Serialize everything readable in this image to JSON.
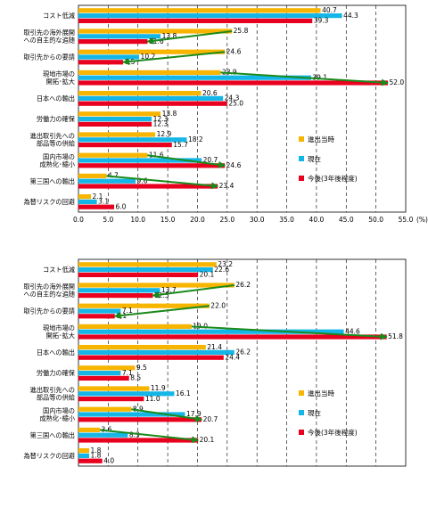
{
  "series_colors": [
    "#f7b500",
    "#14b6e8",
    "#e8001e"
  ],
  "arrow_color": "#1a8a1a",
  "chart_data": [
    {
      "type": "bar",
      "orientation": "horizontal",
      "categories": [
        "コスト低減",
        "取引先の海外展開\nへの自主的な追随",
        "取引先からの要請",
        "現地市場の\n開拓･拡大",
        "日本への輸出",
        "労働力の確保",
        "進出取引先への\n部品等の供給",
        "国内市場の\n成熟化･縮小",
        "第三国への輸出",
        "為替リスクの回避"
      ],
      "series": [
        {
          "name": "進出当時",
          "values": [
            40.7,
            25.8,
            24.6,
            23.9,
            20.6,
            13.8,
            12.9,
            11.6,
            4.7,
            2.1
          ]
        },
        {
          "name": "現在",
          "values": [
            44.3,
            13.8,
            10.2,
            39.1,
            24.3,
            12.3,
            18.2,
            20.7,
            9.6,
            3.1
          ]
        },
        {
          "name": "今後(3年後程度)",
          "values": [
            39.3,
            11.6,
            7.5,
            52.0,
            25.0,
            12.3,
            15.7,
            24.6,
            23.4,
            6.0
          ]
        }
      ],
      "xlim": [
        0,
        55
      ],
      "xticks": [
        "0.0",
        "5.0",
        "10.0",
        "15.0",
        "20.0",
        "25.0",
        "30.0",
        "35.0",
        "40.0",
        "45.0",
        "50.0",
        "55.0"
      ],
      "unit_label": "(%)",
      "grid": "vertical dashed",
      "legend_position": "right"
    },
    {
      "type": "bar",
      "orientation": "horizontal",
      "categories": [
        "コスト低減",
        "取引先の海外展開\nへの自主的な追随",
        "取引先からの要請",
        "現地市場の\n開拓･拡大",
        "日本への輸出",
        "労働力の確保",
        "進出取引先への\n部品等の供給",
        "国内市場の\n成熟化･縮小",
        "第三国への輸出",
        "為替リスクの回避"
      ],
      "series": [
        {
          "name": "進出当時",
          "values": [
            23.2,
            26.2,
            22.0,
            19.0,
            21.4,
            9.5,
            11.9,
            8.9,
            3.6,
            1.8
          ]
        },
        {
          "name": "現在",
          "values": [
            22.6,
            13.7,
            7.1,
            44.6,
            26.2,
            7.1,
            16.1,
            17.9,
            8.3,
            1.8
          ]
        },
        {
          "name": "今後(3年後程度)",
          "values": [
            20.1,
            12.5,
            6.1,
            51.8,
            24.4,
            8.5,
            11.0,
            20.7,
            20.1,
            4.0
          ]
        }
      ],
      "xlim": [
        0,
        55
      ],
      "grid": "vertical dashed",
      "legend_position": "right"
    }
  ]
}
